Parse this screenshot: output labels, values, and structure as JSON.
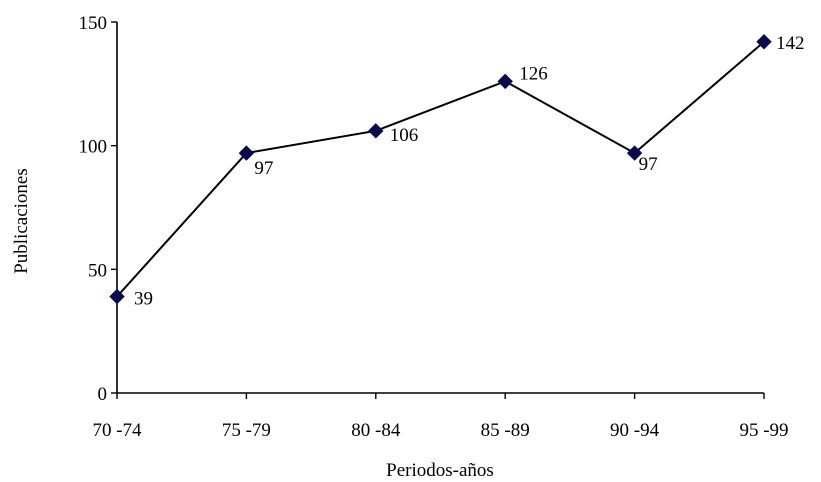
{
  "chart_data": {
    "type": "line",
    "title": "",
    "xlabel": "Periodos-años",
    "ylabel": "Publicaciones",
    "categories": [
      "70 -74",
      "75 -79",
      "80 -84",
      "85 -89",
      "90 -94",
      "95 -99"
    ],
    "series": [
      {
        "values": [
          39,
          97,
          106,
          126,
          97,
          142
        ]
      }
    ],
    "data_labels": [
      "39",
      "97",
      "106",
      "126",
      "97",
      "142"
    ],
    "ylim": [
      0,
      150
    ],
    "yticks": [
      "0",
      "50",
      "100",
      "150"
    ],
    "grid": false,
    "legend": "none",
    "colors": {
      "line": "#000000",
      "marker": "#0a0a4a"
    },
    "marker": "diamond"
  }
}
